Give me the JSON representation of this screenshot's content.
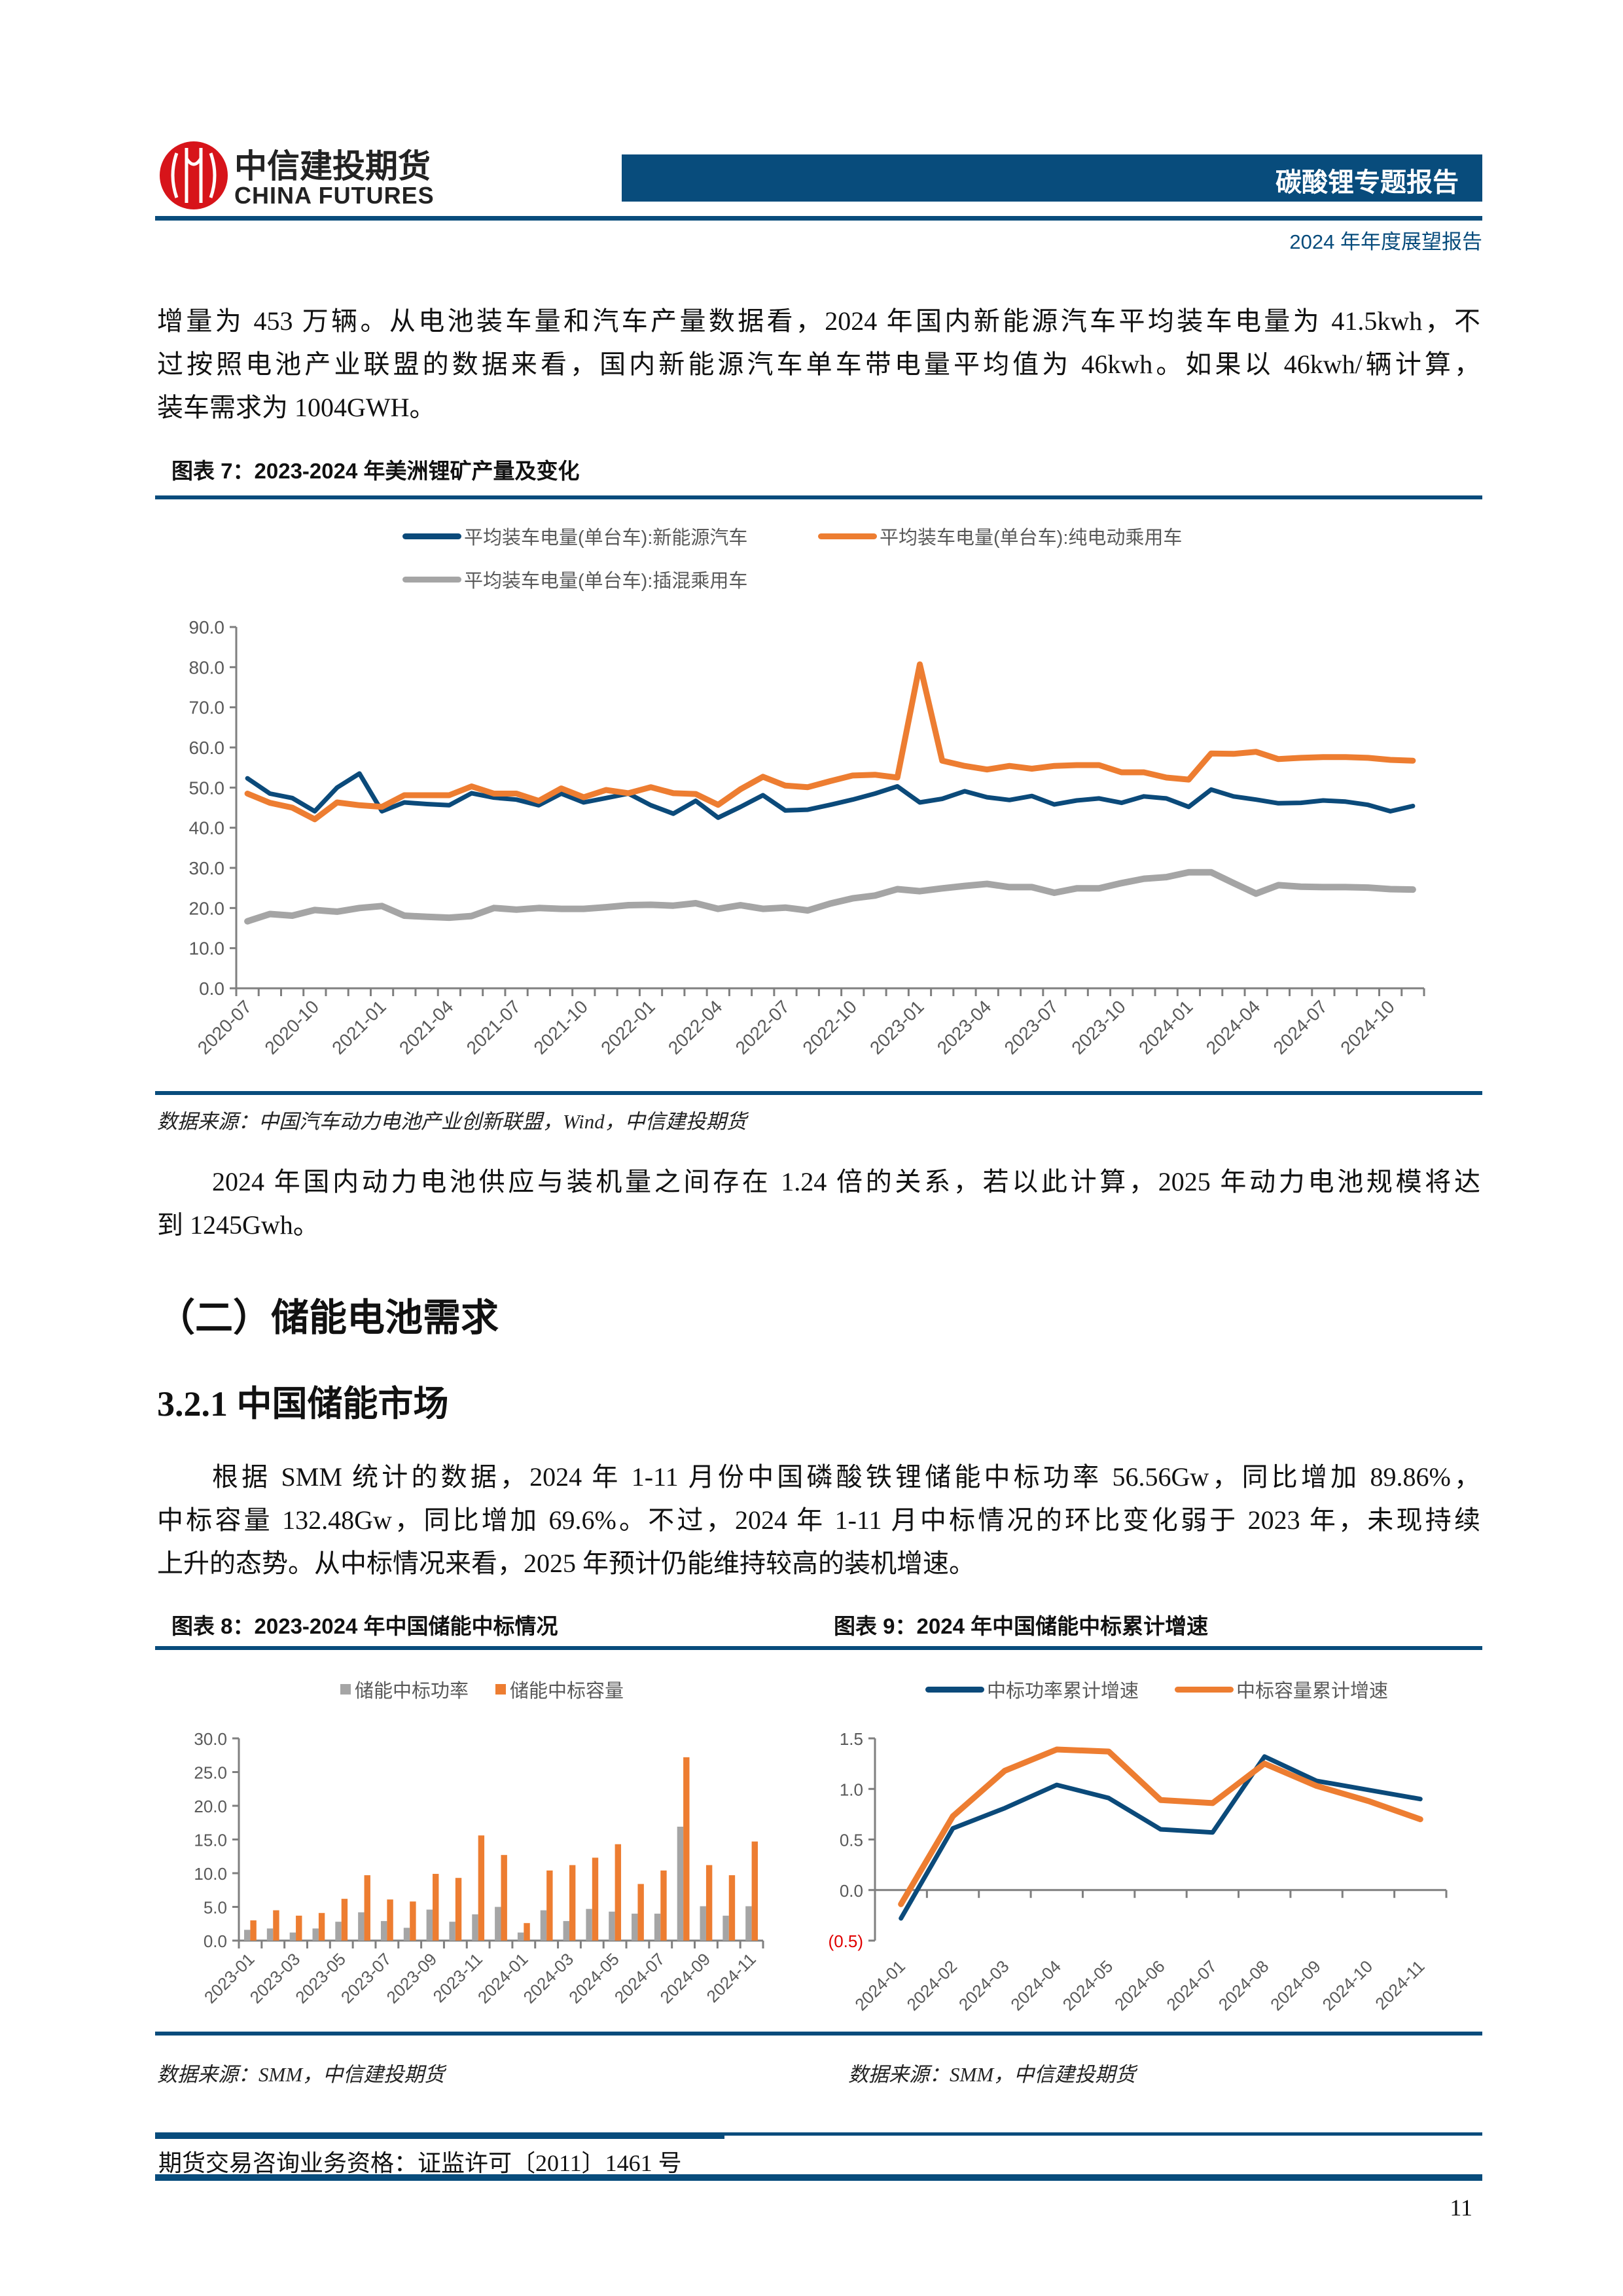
{
  "header": {
    "logo_cn": "中信建投期货",
    "logo_en": "CHINA FUTURES",
    "report_type": "碳酸锂专题报告",
    "subtitle": "2024 年年度展望报告",
    "brand_color": "#084c7c",
    "logo_color": "#d7141a"
  },
  "body": {
    "para1": [
      "增量为 453 万辆。从电池装车量和汽车产量数据看，2024 年国内新能源汽车平均装车电量为 41.5kwh，不",
      "过按照电池产业联盟的数据来看，国内新能源汽车单车带电量平均值为 46kwh。如果以 46kwh/辆计算，",
      "装车需求为 1004GWH。"
    ],
    "para2": [
      "2024 年国内动力电池供应与装机量之间存在 1.24 倍的关系，若以此计算，2025 年动力电池规模将达",
      "到 1245Gwh。"
    ],
    "heading2": "（二）储能电池需求",
    "heading3": "3.2.1 中国储能市场",
    "para3": [
      "根据 SMM 统计的数据，2024 年 1-11 月份中国磷酸铁锂储能中标功率 56.56Gw，同比增加 89.86%，",
      "中标容量 132.48Gw，同比增加 69.6%。不过，2024 年 1-11 月中标情况的环比变化弱于 2023 年，未现持续",
      "上升的态势。从中标情况来看，2025 年预计仍能维持较高的装机增速。"
    ]
  },
  "figures": {
    "fig7_title": "图表 7：2023-2024 年美洲锂矿产量及变化",
    "fig7_source": "数据来源：中国汽车动力电池产业创新联盟，Wind，中信建投期货",
    "fig8_title": "图表 8：2023-2024 年中国储能中标情况",
    "fig8_source": "数据来源：SMM，中信建投期货",
    "fig9_title": "图表 9：2024 年中国储能中标累计增速",
    "fig9_source": "数据来源：SMM，中信建投期货"
  },
  "footer": {
    "license": "期货交易咨询业务资格：证监许可〔2011〕1461 号",
    "page_number": "11"
  },
  "chart_data": [
    {
      "type": "line",
      "x_start": "2020-07",
      "x_end": "2024-11",
      "tick_labels": [
        "2020-07",
        "2020-10",
        "2021-01",
        "2021-04",
        "2021-07",
        "2021-10",
        "2022-01",
        "2022-04",
        "2022-07",
        "2022-10",
        "2023-01",
        "2023-04",
        "2023-07",
        "2023-10",
        "2024-01",
        "2024-04",
        "2024-07",
        "2024-10"
      ],
      "y_ticks": [
        "0.0",
        "10.0",
        "20.0",
        "30.0",
        "40.0",
        "50.0",
        "60.0",
        "70.0",
        "80.0",
        "90.0"
      ],
      "ylim": [
        0,
        90
      ],
      "legend_position": "top",
      "grid": false,
      "series": [
        {
          "name": "平均装车电量(单台车):新能源汽车",
          "color": "#0b4a7a",
          "values": [
            52.3,
            48.5,
            47.4,
            44.1,
            50.0,
            53.5,
            44.1,
            46.3,
            45.9,
            45.6,
            48.6,
            47.5,
            47.0,
            45.6,
            48.5,
            46.3,
            47.4,
            48.5,
            45.6,
            43.5,
            46.7,
            42.5,
            45.2,
            48.1,
            44.3,
            44.5,
            45.7,
            47.0,
            48.5,
            50.3,
            46.3,
            47.2,
            49.1,
            47.6,
            46.9,
            47.9,
            45.8,
            46.8,
            47.3,
            46.2,
            47.8,
            47.3,
            45.2,
            49.5,
            47.8,
            47.0,
            46.1,
            46.2,
            46.8,
            46.5,
            45.7,
            44.1,
            45.4
          ]
        },
        {
          "name": "平均装车电量(单台车):纯电动乘用车",
          "color": "#ed7d31",
          "values": [
            48.5,
            46.2,
            45.0,
            42.1,
            46.3,
            45.6,
            45.2,
            48.1,
            48.1,
            48.1,
            50.3,
            48.5,
            48.5,
            46.7,
            49.8,
            47.6,
            49.4,
            48.6,
            50.1,
            48.6,
            48.4,
            45.7,
            49.6,
            52.7,
            50.5,
            50.1,
            51.6,
            53.0,
            53.2,
            52.5,
            80.7,
            56.7,
            55.4,
            54.5,
            55.4,
            54.7,
            55.4,
            55.6,
            55.6,
            53.8,
            53.8,
            52.5,
            52.0,
            58.5,
            58.4,
            58.9,
            57.1,
            57.4,
            57.6,
            57.6,
            57.4,
            56.9,
            56.7
          ]
        },
        {
          "name": "平均装车电量(单台车):插混乘用车",
          "color": "#a5a5a5",
          "values": [
            16.7,
            18.5,
            18.1,
            19.5,
            19.1,
            20.0,
            20.5,
            18.1,
            17.8,
            17.6,
            18.0,
            20.0,
            19.6,
            20.0,
            19.8,
            19.8,
            20.2,
            20.7,
            20.8,
            20.6,
            21.2,
            19.8,
            20.7,
            19.8,
            20.1,
            19.4,
            21.1,
            22.4,
            23.1,
            24.7,
            24.2,
            24.9,
            25.5,
            26.0,
            25.2,
            25.2,
            23.8,
            24.9,
            24.9,
            26.2,
            27.3,
            27.7,
            28.9,
            28.9,
            26.2,
            23.6,
            25.7,
            25.3,
            25.2,
            25.2,
            25.1,
            24.7,
            24.6
          ]
        }
      ]
    },
    {
      "type": "bar",
      "categories": [
        "2023-01",
        "2023-02",
        "2023-03",
        "2023-04",
        "2023-05",
        "2023-06",
        "2023-07",
        "2023-08",
        "2023-09",
        "2023-10",
        "2023-11",
        "2023-12",
        "2024-01",
        "2024-02",
        "2024-03",
        "2024-04",
        "2024-05",
        "2024-06",
        "2024-07",
        "2024-08",
        "2024-09",
        "2024-10",
        "2024-11"
      ],
      "tick_labels": [
        "2023-01",
        "2023-03",
        "2023-05",
        "2023-07",
        "2023-09",
        "2023-11",
        "2024-01",
        "2024-03",
        "2024-05",
        "2024-07",
        "2024-09",
        "2024-11"
      ],
      "y_ticks": [
        "0.0",
        "5.0",
        "10.0",
        "15.0",
        "20.0",
        "25.0",
        "30.0"
      ],
      "ylim": [
        0,
        30
      ],
      "legend_position": "top",
      "grid": false,
      "series": [
        {
          "name": "储能中标功率",
          "color": "#a5a5a5",
          "values": [
            1.6,
            1.8,
            1.2,
            1.8,
            2.8,
            4.2,
            2.9,
            1.9,
            4.6,
            2.8,
            3.9,
            5.0,
            1.2,
            4.5,
            2.9,
            4.7,
            4.3,
            4.0,
            4.0,
            16.9,
            5.1,
            3.7,
            5.1
          ]
        },
        {
          "name": "储能中标容量",
          "color": "#ed7d31",
          "values": [
            3.0,
            4.5,
            3.7,
            4.1,
            6.2,
            9.7,
            6.1,
            5.8,
            9.9,
            9.3,
            15.6,
            12.7,
            2.6,
            10.4,
            11.2,
            12.3,
            14.3,
            8.4,
            10.4,
            27.2,
            11.2,
            9.7,
            14.7
          ]
        }
      ]
    },
    {
      "type": "line",
      "categories": [
        "2024-01",
        "2024-02",
        "2024-03",
        "2024-04",
        "2024-05",
        "2024-06",
        "2024-07",
        "2024-08",
        "2024-09",
        "2024-10",
        "2024-11"
      ],
      "y_ticks": [
        "(0.5)",
        "0.0",
        "0.5",
        "1.0",
        "1.5"
      ],
      "negative_tick_color": "#e00000",
      "ylim": [
        -0.5,
        1.5
      ],
      "legend_position": "top",
      "grid": false,
      "series": [
        {
          "name": "中标功率累计增速",
          "color": "#0b4a7a",
          "values": [
            -0.28,
            0.61,
            0.81,
            1.04,
            0.91,
            0.6,
            0.57,
            1.32,
            1.08,
            0.99,
            0.9
          ]
        },
        {
          "name": "中标容量累计增速",
          "color": "#ed7d31",
          "values": [
            -0.14,
            0.73,
            1.18,
            1.39,
            1.37,
            0.89,
            0.86,
            1.25,
            1.03,
            0.88,
            0.7
          ]
        }
      ]
    }
  ]
}
